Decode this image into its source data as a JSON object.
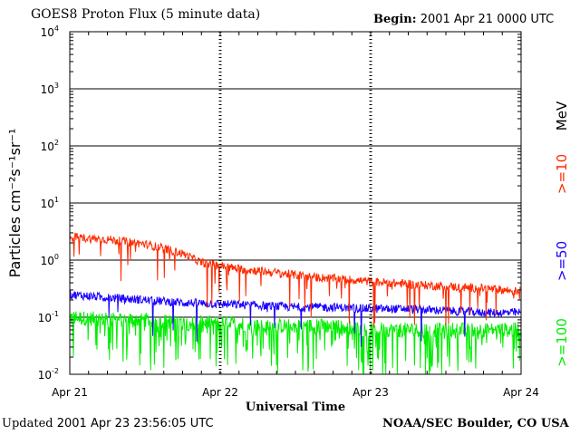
{
  "header": {
    "title": "GOES8 Proton Flux (5 minute data)",
    "begin_label": "Begin:",
    "begin_value": "2001 Apr 21 0000 UTC"
  },
  "footer": {
    "updated_label": "Updated",
    "updated_value": "2001 Apr 23 23:56:05 UTC",
    "credit": "NOAA/SEC Boulder, CO USA"
  },
  "colors": {
    "ge10": "#ff2a00",
    "ge50": "#1a00ff",
    "ge100": "#00ee00",
    "axes": "#000000"
  },
  "chart_data": {
    "type": "line",
    "title": "GOES8 Proton Flux (5 minute data)",
    "xlabel": "Universal Time",
    "ylabel": "Particles cm⁻²s⁻¹sr⁻¹",
    "yscale": "log",
    "ylim": [
      0.01,
      10000
    ],
    "xlim": [
      "2001-04-21",
      "2001-04-24"
    ],
    "x_ticks": [
      "Apr 21",
      "Apr 22",
      "Apr 23",
      "Apr 24"
    ],
    "y_ticks": [
      {
        "base": "10",
        "exp": "-2"
      },
      {
        "base": "10",
        "exp": "-1"
      },
      {
        "base": "10",
        "exp": "0"
      },
      {
        "base": "10",
        "exp": "1"
      },
      {
        "base": "10",
        "exp": "2"
      },
      {
        "base": "10",
        "exp": "3"
      },
      {
        "base": "10",
        "exp": "4"
      }
    ],
    "y_tick_values": [
      0.01,
      0.1,
      1,
      10,
      100,
      1000,
      10000
    ],
    "grid": "horizontal at each decade",
    "legend_title": "MeV",
    "legend_placement": "right, vertical text",
    "series": [
      {
        "name": ">=10",
        "color": "#ff2a00",
        "x_hours": [
          0,
          3,
          6,
          9,
          12,
          15,
          18,
          21,
          24,
          27,
          30,
          33,
          36,
          39,
          42,
          45,
          48,
          51,
          54,
          57,
          60,
          63,
          66,
          69,
          72
        ],
        "values": [
          2.6,
          2.4,
          2.3,
          2.1,
          1.9,
          1.6,
          1.3,
          0.9,
          0.8,
          0.7,
          0.65,
          0.6,
          0.55,
          0.5,
          0.48,
          0.45,
          0.42,
          0.4,
          0.38,
          0.36,
          0.35,
          0.33,
          0.32,
          0.3,
          0.28
        ]
      },
      {
        "name": ">=50",
        "color": "#1a00ff",
        "x_hours": [
          0,
          6,
          12,
          18,
          24,
          30,
          36,
          42,
          48,
          54,
          60,
          66,
          72
        ],
        "values": [
          0.25,
          0.22,
          0.2,
          0.18,
          0.17,
          0.16,
          0.15,
          0.15,
          0.14,
          0.14,
          0.13,
          0.12,
          0.12
        ]
      },
      {
        "name": ">=100",
        "color": "#00ee00",
        "x_hours": [
          0,
          6,
          12,
          18,
          24,
          30,
          36,
          42,
          48,
          54,
          60,
          66,
          72
        ],
        "values": [
          0.1,
          0.09,
          0.09,
          0.08,
          0.08,
          0.07,
          0.07,
          0.07,
          0.06,
          0.06,
          0.06,
          0.06,
          0.06
        ]
      }
    ]
  }
}
